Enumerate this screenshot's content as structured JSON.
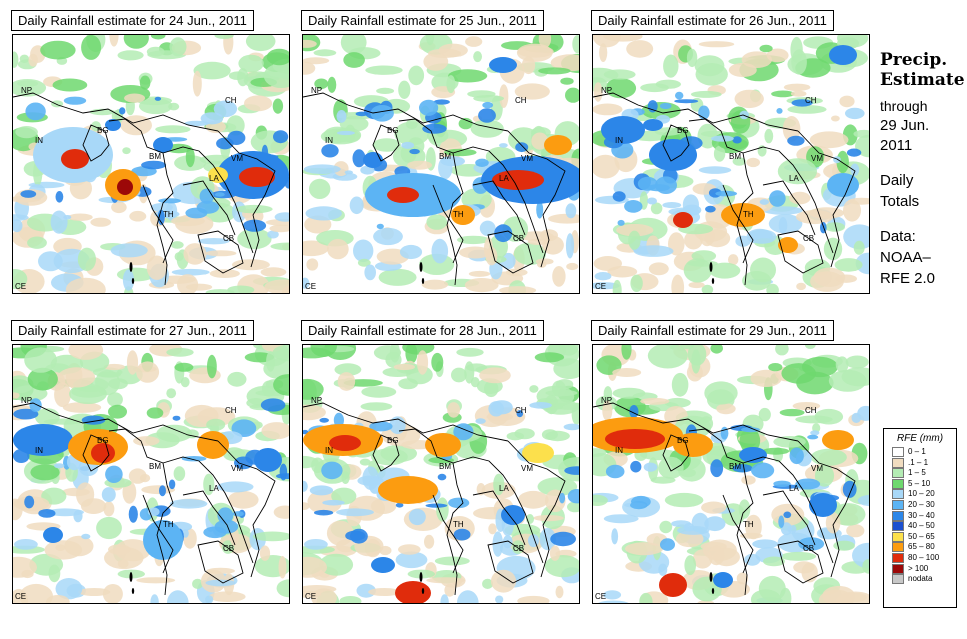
{
  "panels": [
    {
      "title": "Daily Rainfall estimate for  24 Jun., 2011",
      "day": 0
    },
    {
      "title": "Daily Rainfall estimate for  25 Jun., 2011",
      "day": 1
    },
    {
      "title": "Daily Rainfall estimate for  26 Jun., 2011",
      "day": 2
    },
    {
      "title": "Daily Rainfall estimate for  27 Jun., 2011",
      "day": 3
    },
    {
      "title": "Daily Rainfall estimate for  28 Jun., 2011",
      "day": 4
    },
    {
      "title": "Daily Rainfall estimate for  29 Jun., 2011",
      "day": 5
    }
  ],
  "map_labels": [
    "NP",
    "CH",
    "IN",
    "BG",
    "BM",
    "VM",
    "LA",
    "TH",
    "CB",
    "CE"
  ],
  "sidebar": {
    "title_line1": "Precip.",
    "title_line2": "Estimate",
    "through": "through",
    "date_line1": "29 Jun.",
    "date_line2": "2011",
    "daily_line1": "Daily",
    "daily_line2": "Totals",
    "data_line1": "Data:",
    "data_line2": "NOAA–",
    "data_line3": "RFE 2.0"
  },
  "legend": {
    "title": "RFE (mm)",
    "items": [
      {
        "label": "0 – 1",
        "color": "#ffffff"
      },
      {
        "label": ".1 – 1",
        "color": "#f0dcc0"
      },
      {
        "label": "1 – 5",
        "color": "#b4ecb4"
      },
      {
        "label": "5 – 10",
        "color": "#6ed86e"
      },
      {
        "label": "10 – 20",
        "color": "#a8d8f8"
      },
      {
        "label": "20 – 30",
        "color": "#5cb4f4"
      },
      {
        "label": "30 – 40",
        "color": "#2c86e8"
      },
      {
        "label": "40 – 50",
        "color": "#1c50d0"
      },
      {
        "label": "50 – 65",
        "color": "#fce04c"
      },
      {
        "label": "65 – 80",
        "color": "#fc9c10"
      },
      {
        "label": "80 – 100",
        "color": "#e02c0c"
      },
      {
        "label": "> 100",
        "color": "#9c0808"
      },
      {
        "label": "nodata",
        "color": "#c8c8c8"
      }
    ]
  }
}
